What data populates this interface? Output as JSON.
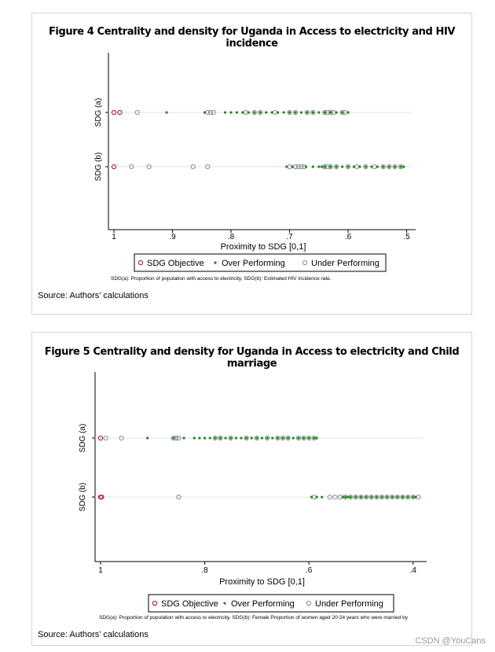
{
  "figures": [
    {
      "title": "Figure 4 Centrality and density for Uganda in Access to electricity and HIV incidence",
      "source": "Source: Authors’ calculations",
      "chart_data": {
        "type": "scatter",
        "title": "Figure 4 Centrality and density for Uganda in Access to electricity and HIV incidence",
        "xlabel": "Proximity to SDG [0,1]",
        "ylabel": "",
        "xlim": [
          1.0,
          0.49
        ],
        "x_reversed": true,
        "x_ticks": [
          "1",
          ".9",
          ".8",
          ".7",
          ".6",
          ".5"
        ],
        "x_tick_values": [
          1.0,
          0.9,
          0.8,
          0.7,
          0.6,
          0.5
        ],
        "categories": [
          "SDG (a)",
          "SDG (b)"
        ],
        "grid": false,
        "legend": {
          "placement": "bottom",
          "entries": [
            "SDG Objective",
            "Over Performing",
            "Under Performing"
          ]
        },
        "note": "SDG(a): Proportion of population with access to electricity,  SDG(b): Estimated HIV incidence rate.",
        "colors": {
          "objective": "#c8102e",
          "over": "#1a8a1a",
          "under": "#8c8c8c"
        },
        "series": [
          {
            "name": "SDG Objective",
            "category": "SDG (a)",
            "x": [
              1.0,
              0.99
            ]
          },
          {
            "name": "Under Performing",
            "category": "SDG (a)",
            "x": [
              0.96,
              0.84,
              0.835,
              0.83,
              0.775,
              0.76,
              0.75,
              0.725,
              0.7,
              0.69,
              0.67,
              0.66,
              0.64,
              0.635,
              0.63,
              0.625,
              0.61,
              0.605
            ]
          },
          {
            "name": "Over Performing",
            "category": "SDG (a)",
            "x": [
              0.91,
              0.845,
              0.81,
              0.8,
              0.79,
              0.78,
              0.77,
              0.76,
              0.75,
              0.74,
              0.73,
              0.72,
              0.71,
              0.7,
              0.69,
              0.68,
              0.67,
              0.66,
              0.65,
              0.64,
              0.63,
              0.62,
              0.61,
              0.6
            ]
          },
          {
            "name": "SDG Objective",
            "category": "SDG (b)",
            "x": [
              1.0
            ]
          },
          {
            "name": "Under Performing",
            "category": "SDG (b)",
            "x": [
              0.97,
              0.94,
              0.865,
              0.84,
              0.7,
              0.69,
              0.685,
              0.68,
              0.675,
              0.64,
              0.635,
              0.63,
              0.62,
              0.6,
              0.585,
              0.57,
              0.555,
              0.54,
              0.53,
              0.52,
              0.51
            ]
          },
          {
            "name": "Over Performing",
            "category": "SDG (b)",
            "x": [
              0.705,
              0.695,
              0.672,
              0.66,
              0.65,
              0.645,
              0.64,
              0.63,
              0.62,
              0.61,
              0.6,
              0.59,
              0.58,
              0.57,
              0.56,
              0.55,
              0.54,
              0.53,
              0.52,
              0.51,
              0.505
            ]
          }
        ]
      }
    },
    {
      "title": "Figure 5 Centrality and density for Uganda in Access to electricity and Child marriage",
      "source": "Source: Authors’ calculations",
      "chart_data": {
        "type": "scatter",
        "title": "Figure 5 Centrality and density for Uganda in Access to electricity and Child marriage",
        "xlabel": "Proximity to SDG [0,1]",
        "ylabel": "",
        "xlim": [
          1.0,
          0.38
        ],
        "x_reversed": true,
        "x_ticks": [
          "1",
          ".8",
          ".6",
          ".4"
        ],
        "x_tick_values": [
          1.0,
          0.8,
          0.6,
          0.4
        ],
        "categories": [
          "SDG (a)",
          "SDG (b)"
        ],
        "grid": false,
        "legend": {
          "placement": "bottom",
          "entries": [
            "SDG Objective",
            "Over Performing",
            "Under Performing"
          ]
        },
        "note": "SDG(a): Proportion of population with access to electricity,  SDG(b): Female Proportion of women aged 20-24 years who were married by",
        "colors": {
          "objective": "#c8102e",
          "over": "#1a8a1a",
          "under": "#8c8c8c"
        },
        "series": [
          {
            "name": "SDG Objective",
            "category": "SDG (a)",
            "x": [
              1.0
            ]
          },
          {
            "name": "Under Performing",
            "category": "SDG (a)",
            "x": [
              0.99,
              0.96,
              0.86,
              0.855,
              0.85,
              0.78,
              0.77,
              0.75,
              0.72,
              0.7,
              0.68,
              0.66,
              0.65,
              0.64,
              0.62,
              0.61,
              0.6,
              0.59
            ]
          },
          {
            "name": "Over Performing",
            "category": "SDG (a)",
            "x": [
              0.91,
              0.86,
              0.84,
              0.82,
              0.81,
              0.8,
              0.79,
              0.78,
              0.77,
              0.76,
              0.75,
              0.74,
              0.73,
              0.72,
              0.71,
              0.7,
              0.69,
              0.68,
              0.67,
              0.66,
              0.65,
              0.64,
              0.63,
              0.62,
              0.61,
              0.6,
              0.59,
              0.585
            ]
          },
          {
            "name": "SDG Objective",
            "category": "SDG (b)",
            "x": [
              1.0,
              0.998
            ]
          },
          {
            "name": "Under Performing",
            "category": "SDG (b)",
            "x": [
              0.85,
              0.59,
              0.56,
              0.55,
              0.54,
              0.53,
              0.52,
              0.51,
              0.5,
              0.49,
              0.48,
              0.47,
              0.46,
              0.45,
              0.44,
              0.43,
              0.42,
              0.41,
              0.4,
              0.39
            ]
          },
          {
            "name": "Over Performing",
            "category": "SDG (b)",
            "x": [
              0.595,
              0.585,
              0.575,
              0.535,
              0.53,
              0.525,
              0.52,
              0.51,
              0.5,
              0.49,
              0.48,
              0.47,
              0.46,
              0.45,
              0.44,
              0.43,
              0.42,
              0.41,
              0.4,
              0.395
            ]
          }
        ]
      }
    }
  ],
  "watermark": "CSDN @YouCans"
}
